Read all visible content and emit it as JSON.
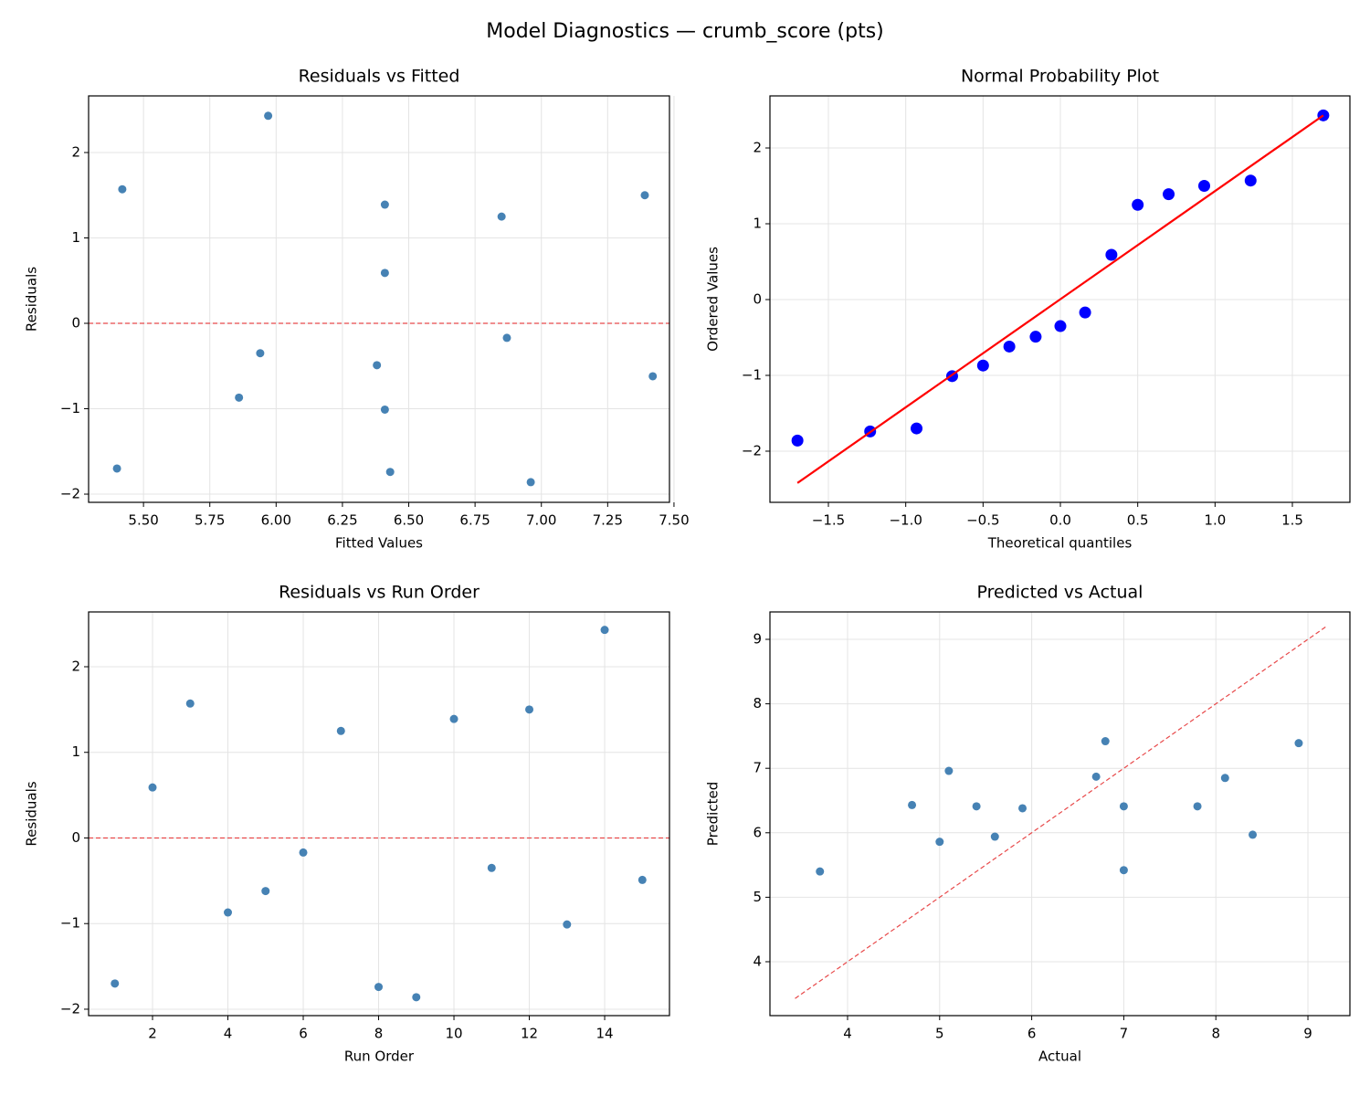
{
  "title": "Model Diagnostics — crumb_score (pts)",
  "chart_data": [
    {
      "type": "scatter",
      "title": "Residuals vs Fitted",
      "xlabel": "Fitted Values",
      "ylabel": "Residuals",
      "series": [
        {
          "style": "points",
          "color": "#4682b4",
          "x": [
            5.4,
            6.41,
            5.42,
            5.86,
            7.42,
            6.87,
            6.85,
            6.43,
            6.96,
            6.41,
            5.94,
            7.39,
            6.41,
            5.97,
            6.38
          ],
          "values": [
            -1.7,
            0.59,
            1.57,
            -0.87,
            -0.62,
            -0.17,
            1.25,
            -1.74,
            -1.86,
            1.39,
            -0.35,
            1.5,
            -1.01,
            2.43,
            -0.49
          ]
        }
      ],
      "hline": {
        "value": 0,
        "color": "#e8494a",
        "style": "dashed"
      },
      "xlim": [
        5.293,
        7.483
      ],
      "ylim": [
        -2.096,
        2.663
      ],
      "xticks": [
        {
          "value": 5.5,
          "label": "5.50"
        },
        5.75,
        {
          "value": 6,
          "label": "6.00"
        },
        6.25,
        {
          "value": 6.5,
          "label": "6.50"
        },
        6.75,
        {
          "value": 7,
          "label": "7.00"
        },
        7.25,
        {
          "value": 7.5,
          "label": "7.50"
        }
      ],
      "yticks": [
        {
          "value": -2,
          "label": "−2"
        },
        {
          "value": -1,
          "label": "−1"
        },
        0,
        1,
        2
      ],
      "grid": true
    },
    {
      "type": "scatter",
      "title": "Normal Probability Plot",
      "xlabel": "Theoretical quantiles",
      "ylabel": "Ordered Values",
      "series": [
        {
          "style": "points-large",
          "color": "#0000ff",
          "x": [
            -1.7,
            -1.23,
            -0.93,
            -0.7,
            -0.5,
            -0.33,
            -0.16,
            0,
            0.16,
            0.33,
            0.5,
            0.7,
            0.93,
            1.23,
            1.7
          ],
          "values": [
            -1.86,
            -1.74,
            -1.7,
            -1.01,
            -0.87,
            -0.62,
            -0.49,
            -0.35,
            -0.17,
            0.59,
            1.25,
            1.39,
            1.5,
            1.57,
            2.43
          ]
        },
        {
          "style": "line",
          "color": "#ff0000",
          "x": [
            -1.7,
            1.7
          ],
          "values": [
            -2.42,
            2.43
          ]
        }
      ],
      "xlim": [
        -1.878,
        1.872
      ],
      "ylim": [
        -2.675,
        2.687
      ],
      "xticks": [
        {
          "value": -1.5,
          "label": "−1.5"
        },
        {
          "value": -1,
          "label": "−1.0"
        },
        {
          "value": -0.5,
          "label": "−0.5"
        },
        {
          "value": 0,
          "label": "0.0"
        },
        0.5,
        {
          "value": 1,
          "label": "1.0"
        },
        1.5
      ],
      "yticks": [
        {
          "value": -2,
          "label": "−2"
        },
        {
          "value": -1,
          "label": "−1"
        },
        0,
        1,
        2
      ],
      "grid": true
    },
    {
      "type": "scatter",
      "title": "Residuals vs Run Order",
      "xlabel": "Run Order",
      "ylabel": "Residuals",
      "series": [
        {
          "style": "points",
          "color": "#4682b4",
          "x": [
            1,
            2,
            3,
            4,
            5,
            6,
            7,
            8,
            9,
            10,
            11,
            12,
            13,
            14,
            15
          ],
          "values": [
            -1.7,
            0.59,
            1.57,
            -0.87,
            -0.62,
            -0.17,
            1.25,
            -1.74,
            -1.86,
            1.39,
            -0.35,
            1.5,
            -1.01,
            2.43,
            -0.49
          ]
        }
      ],
      "hline": {
        "value": 0,
        "color": "#e8494a",
        "style": "dashed"
      },
      "xlim": [
        0.303,
        15.72
      ],
      "ylim": [
        -2.075,
        2.64
      ],
      "xticks": [
        2,
        4,
        6,
        8,
        10,
        12,
        14
      ],
      "yticks": [
        {
          "value": -2,
          "label": "−2"
        },
        {
          "value": -1,
          "label": "−1"
        },
        0,
        1,
        2
      ],
      "grid": true
    },
    {
      "type": "scatter",
      "title": "Predicted vs Actual",
      "xlabel": "Actual",
      "ylabel": "Predicted",
      "series": [
        {
          "style": "points",
          "color": "#4682b4",
          "x": [
            3.7,
            7.0,
            7.0,
            5.0,
            6.8,
            6.7,
            8.1,
            4.7,
            5.1,
            7.8,
            5.6,
            8.9,
            5.4,
            8.4,
            5.9
          ],
          "values": [
            5.4,
            6.41,
            5.42,
            5.86,
            7.42,
            6.87,
            6.85,
            6.43,
            6.96,
            6.41,
            5.94,
            7.39,
            6.41,
            5.97,
            6.38
          ]
        },
        {
          "style": "dashed-line",
          "color": "#e8494a",
          "x": [
            3.43,
            9.2
          ],
          "values": [
            3.43,
            9.2
          ]
        }
      ],
      "xlim": [
        3.157,
        9.456
      ],
      "ylim": [
        3.164,
        9.425
      ],
      "xticks": [
        4,
        5,
        6,
        7,
        8,
        9
      ],
      "yticks": [
        4,
        5,
        6,
        7,
        8,
        9
      ],
      "grid": true
    }
  ]
}
